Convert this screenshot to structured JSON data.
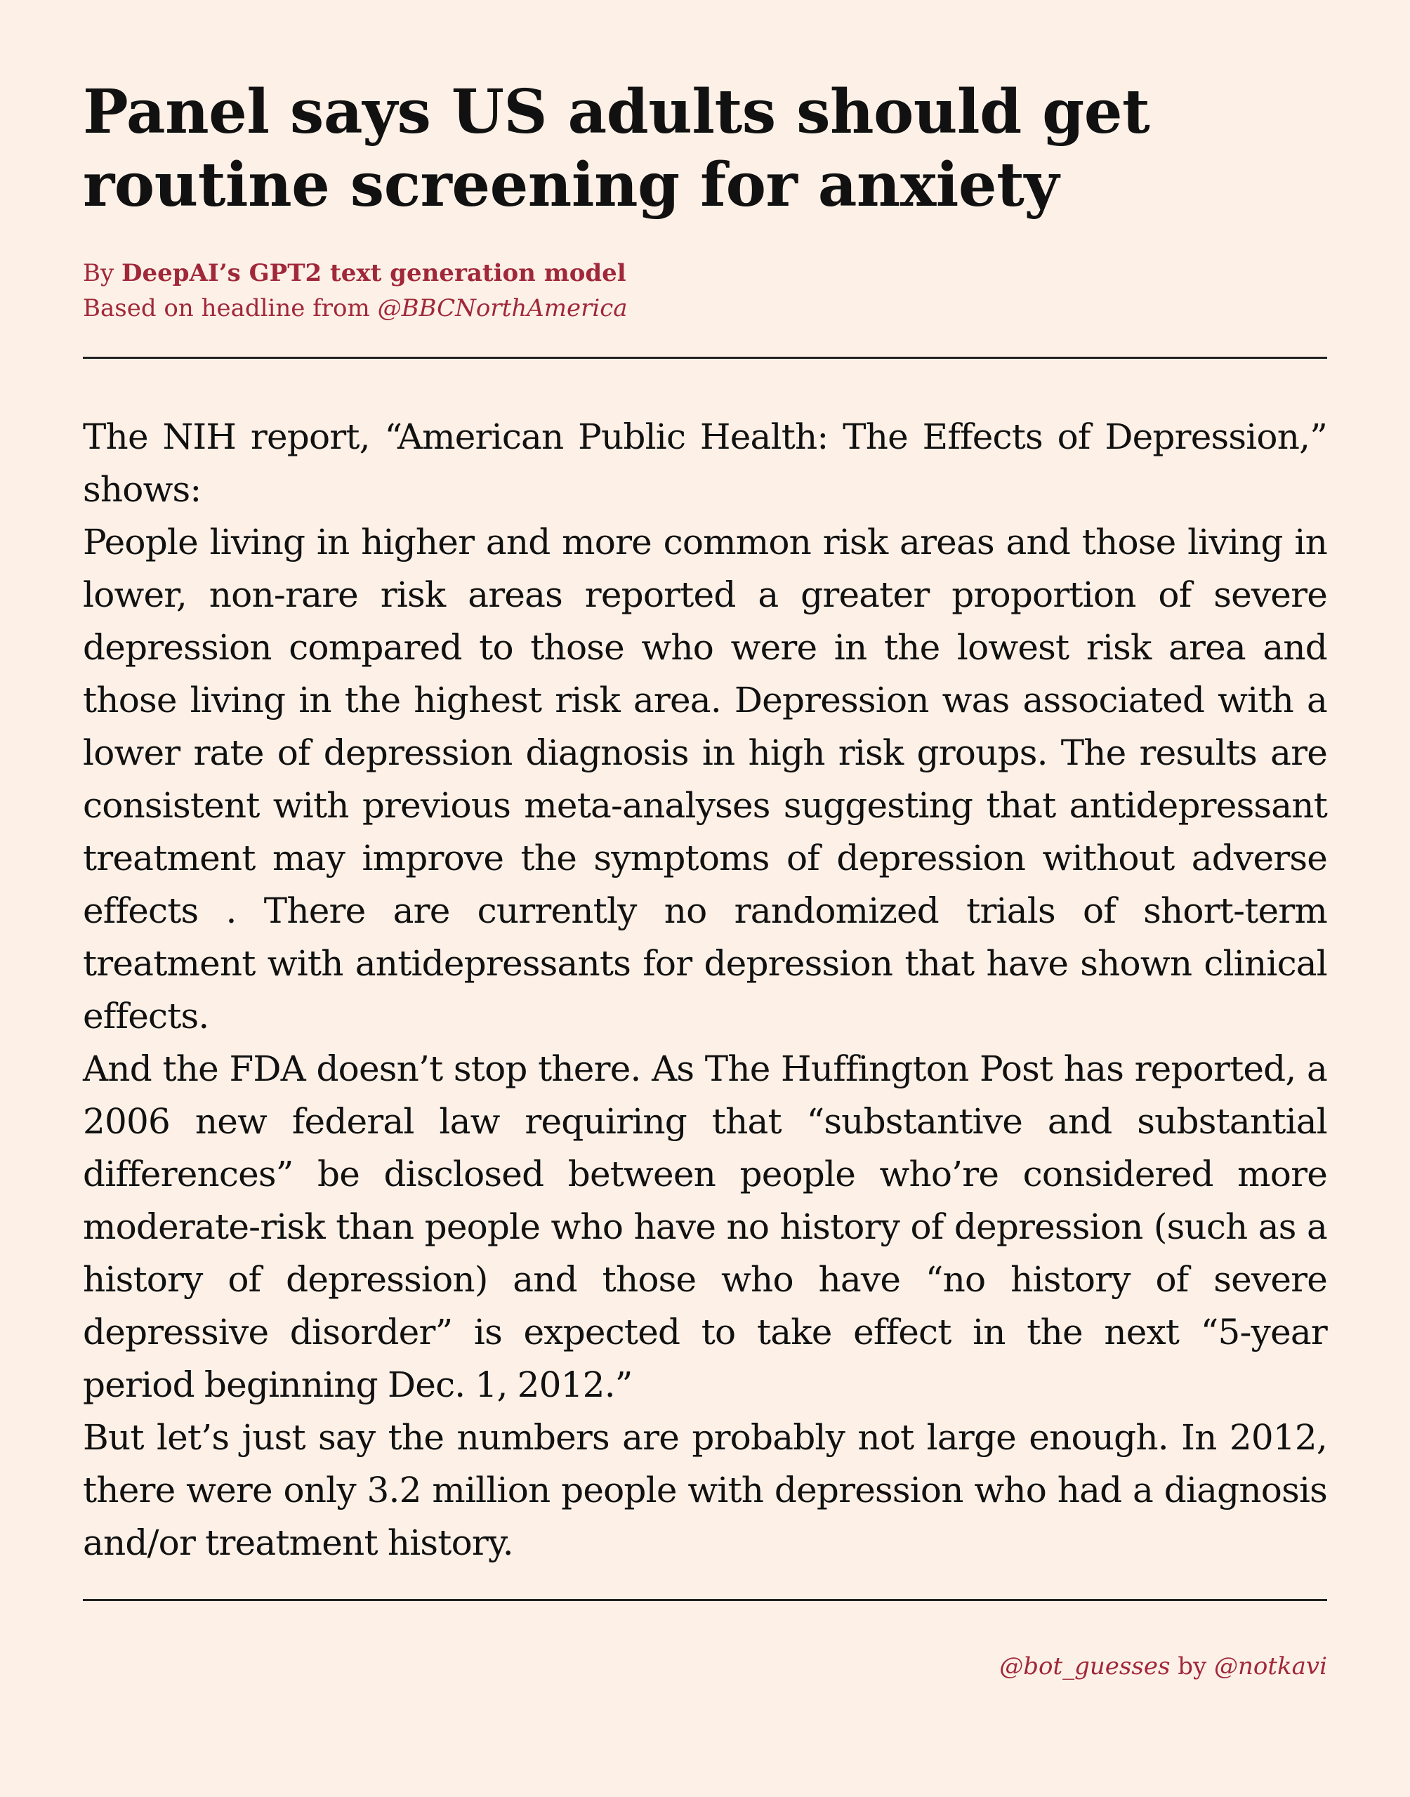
{
  "headline": "Panel says US adults should get routine screening for anxiety",
  "byline": {
    "prefix": "By ",
    "author": "DeepAI’s GPT2 text generation model",
    "source_prefix": "Based on headline from ",
    "source_handle": "@BBCNorthAmerica"
  },
  "article": {
    "paragraphs": [
      "The NIH report, “American Public Health: The Effects of Depression,” shows:",
      "People living in higher and more common risk areas and those living in lower, non-rare risk areas reported a greater proportion of severe depression compared to those who were in the lowest risk area and those living in the highest risk area. Depression was associated with a lower rate of depression diagnosis in high risk groups. The results are consistent with previous meta-analyses suggesting that antidepressant treatment may improve the symptoms of depression without adverse effects . There are currently no randomized trials of short-term treatment with antidepressants for depression that have shown clinical effects.",
      "And the FDA doesn’t stop there. As The Huffington Post has reported, a 2006 new federal law requiring that “substantive and substantial differences” be disclosed between people who’re considered more moderate-risk than people who have no history of depression (such as a history of depression) and those who have “no history of severe depressive disorder” is expected to take effect in the next “5-year period beginning Dec. 1, 2012.”",
      "But let’s just say the numbers are probably not large enough. In 2012, there were only 3.2 million people with depression who had a diagnosis and/or treatment history."
    ]
  },
  "footer": {
    "bot_handle": "@bot_guesses",
    "by_text": " by ",
    "creator_handle": "@notkavi"
  },
  "colors": {
    "background": "#fdf1e7",
    "accent": "#a0283a",
    "text": "#111111"
  }
}
